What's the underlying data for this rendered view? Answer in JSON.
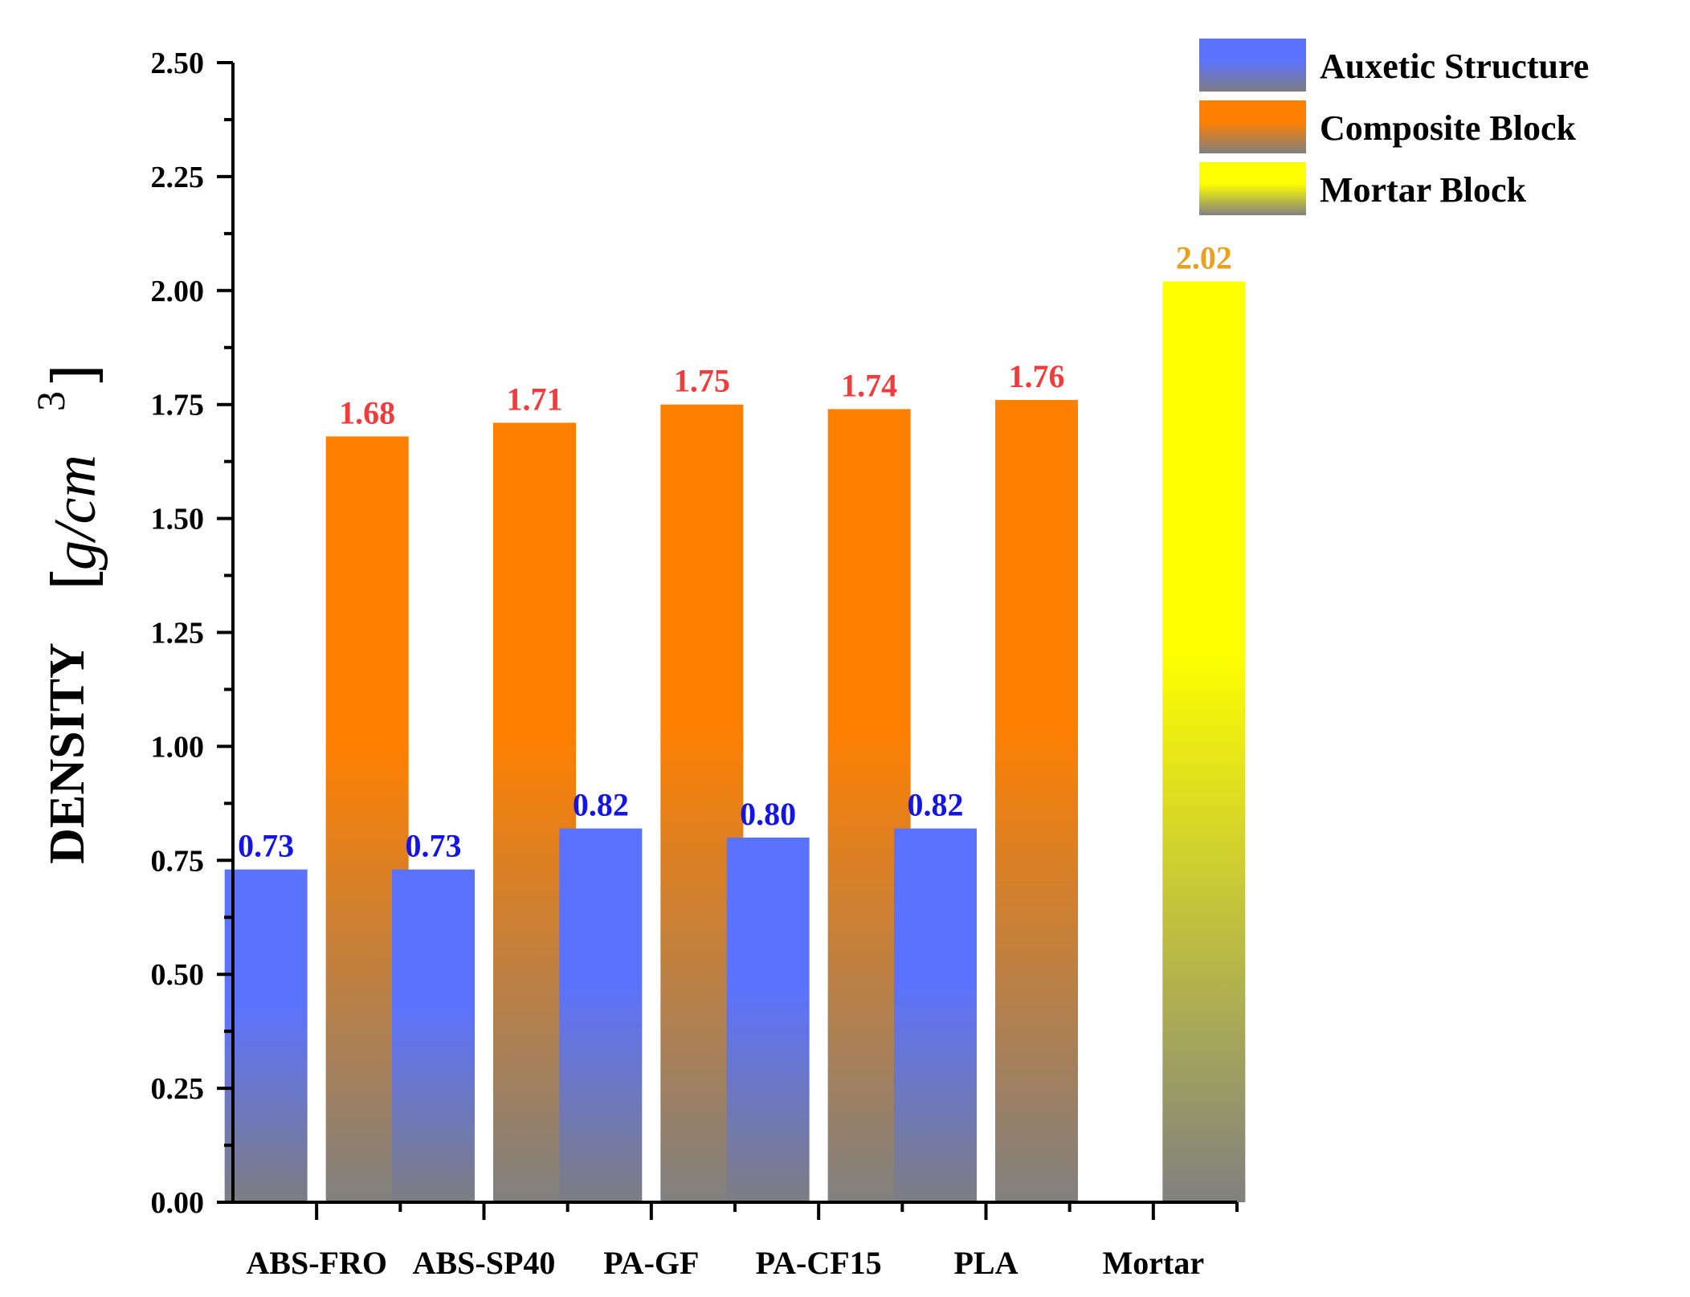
{
  "chart_data": {
    "type": "bar",
    "categories": [
      "ABS-FRO",
      "ABS-SP40",
      "PA-GF",
      "PA-CF15",
      "PLA",
      "Mortar"
    ],
    "series": [
      {
        "name": "Auxetic Structure",
        "values": [
          0.73,
          0.73,
          0.82,
          0.8,
          0.82,
          null
        ],
        "labels": [
          "0.73",
          "0.73",
          "0.82",
          "0.80",
          "0.82",
          ""
        ],
        "color_top": "#5b72ff",
        "color_bottom": "#7d7d82",
        "label_color": "#1414e6"
      },
      {
        "name": "Composite Block",
        "values": [
          1.68,
          1.71,
          1.75,
          1.74,
          1.76,
          null
        ],
        "labels": [
          "1.68",
          "1.71",
          "1.75",
          "1.74",
          "1.76",
          ""
        ],
        "color_top": "#ff8000",
        "color_bottom": "#808080",
        "label_color": "#f03c3c"
      },
      {
        "name": "Mortar Block",
        "values": [
          null,
          null,
          null,
          null,
          null,
          2.02
        ],
        "labels": [
          "",
          "",
          "",
          "",
          "",
          "2.02"
        ],
        "color_top": "#ffff00",
        "color_bottom": "#808080",
        "label_color": "#e8a020"
      }
    ],
    "ylabel_text": "DENSITY",
    "ylabel_unit": "g/cm",
    "ylabel_unit_sup": "3",
    "ylim": [
      0,
      2.5
    ],
    "yticks": [
      "0.00",
      "0.25",
      "0.50",
      "0.75",
      "1.00",
      "1.25",
      "1.50",
      "1.75",
      "2.00",
      "2.25",
      "2.50"
    ],
    "legend_position": "top-right",
    "grid": false
  }
}
